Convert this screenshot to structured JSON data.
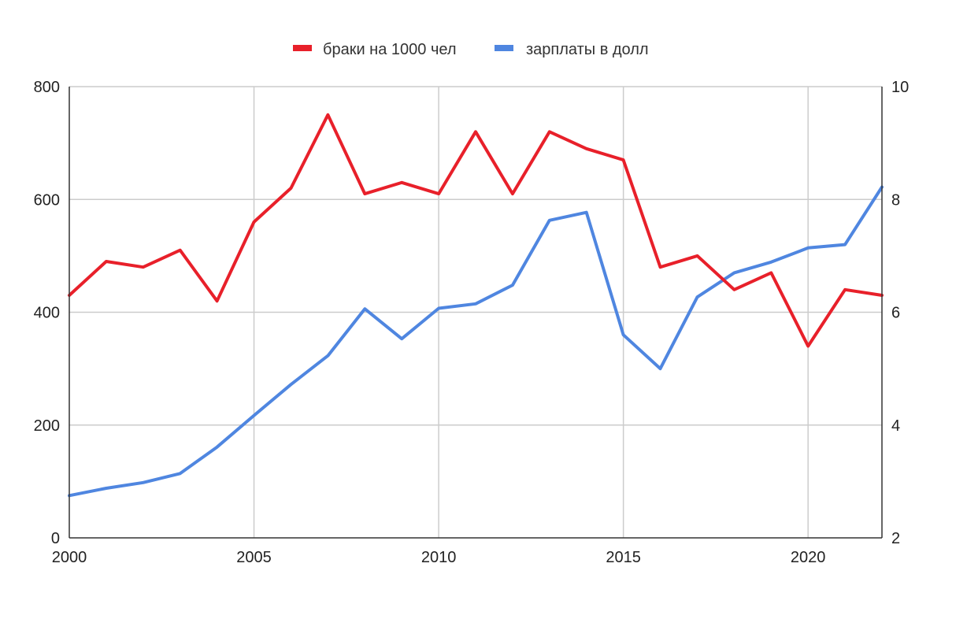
{
  "chart_data": {
    "type": "line",
    "title": "",
    "xlabel": "",
    "ylabel": "",
    "x": [
      2000,
      2001,
      2002,
      2003,
      2004,
      2005,
      2006,
      2007,
      2008,
      2009,
      2010,
      2011,
      2012,
      2013,
      2014,
      2015,
      2016,
      2017,
      2018,
      2019,
      2020,
      2021,
      2022
    ],
    "xlim": [
      2000,
      2022
    ],
    "x_ticks": [
      "2000",
      "2005",
      "2010",
      "2015",
      "2020"
    ],
    "y_left_lim": [
      0,
      800
    ],
    "y_left_ticks": [
      "0",
      "200",
      "400",
      "600",
      "800"
    ],
    "y_right_lim": [
      2,
      10
    ],
    "y_right_ticks": [
      "2",
      "4",
      "6",
      "8",
      "10"
    ],
    "grid": true,
    "legend_position": "top-center",
    "series": [
      {
        "name": "браки на 1000 чел",
        "axis": "left",
        "color": "#e8202a",
        "values": [
          430,
          490,
          480,
          510,
          420,
          560,
          620,
          750,
          610,
          630,
          610,
          720,
          610,
          720,
          690,
          670,
          480,
          500,
          440,
          470,
          340,
          440,
          430
        ]
      },
      {
        "name": "зарплаты в долл",
        "axis": "right",
        "color": "#4f86e0",
        "values": [
          2.75,
          2.88,
          2.98,
          3.14,
          3.61,
          4.17,
          4.72,
          5.23,
          6.06,
          5.53,
          6.07,
          6.15,
          6.48,
          7.63,
          7.77,
          5.6,
          5.0,
          6.27,
          6.7,
          6.89,
          7.14,
          7.2,
          8.22
        ]
      }
    ]
  }
}
